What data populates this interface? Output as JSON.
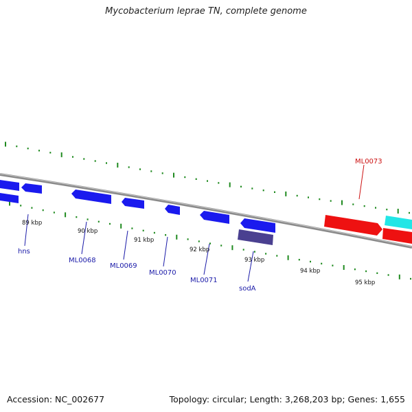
{
  "title": "Mycobacterium leprae TN, complete genome",
  "footer": {
    "accession": "Accession: NC_002677",
    "summary": "Topology: circular; Length: 3,268,203 bp; Genes: 1,655"
  },
  "colors": {
    "backbone": "#8a8a8a",
    "tick": "#1f8a1f",
    "forward_gene": "#ee1111",
    "forward_gene_alt": "#22e6e6",
    "reverse_gene": "#1a1aee",
    "reverse_gene_highlight": "#4a4090",
    "label_forward": "#cc1111",
    "label_reverse": "#1a1aa8"
  },
  "scale_labels": [
    "89 kbp",
    "90 kbp",
    "91 kbp",
    "92 kbp",
    "93 kbp",
    "94 kbp",
    "95 kbp"
  ],
  "gene_labels": [
    {
      "name": "hns",
      "strand": "reverse"
    },
    {
      "name": "ML0068",
      "strand": "reverse"
    },
    {
      "name": "ML0069",
      "strand": "reverse"
    },
    {
      "name": "ML0070",
      "strand": "reverse"
    },
    {
      "name": "ML0071",
      "strand": "reverse"
    },
    {
      "name": "sodA",
      "strand": "reverse"
    },
    {
      "name": "ML0073",
      "strand": "forward"
    }
  ]
}
